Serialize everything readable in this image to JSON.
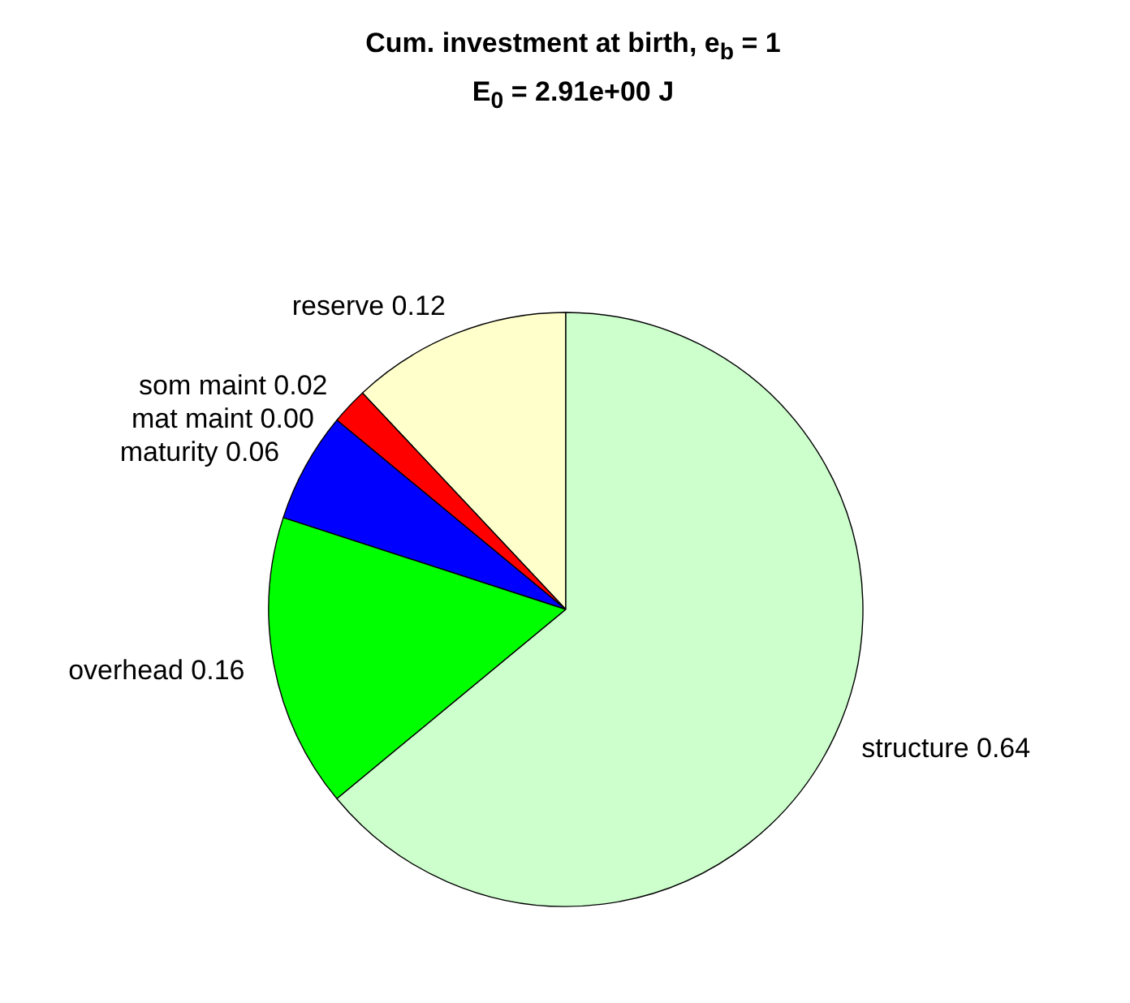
{
  "chart_data": {
    "type": "pie",
    "title": "Cum. investment at birth, e$_{b}$ = 1",
    "subtitle": "E$_{0}$ = 2.91e+00 J",
    "categories": [
      "reserve",
      "som maint",
      "mat maint",
      "maturity",
      "overhead",
      "structure"
    ],
    "values": [
      0.12,
      0.02,
      0.0,
      0.06,
      0.16,
      0.64
    ],
    "value_labels": [
      "0.12",
      "0.02",
      "0.00",
      "0.06",
      "0.16",
      "0.64"
    ],
    "colors": [
      "#ffffcc",
      "#ff0000",
      "#ff00ff",
      "#0000ff",
      "#00ff00",
      "#ccffcc"
    ]
  }
}
